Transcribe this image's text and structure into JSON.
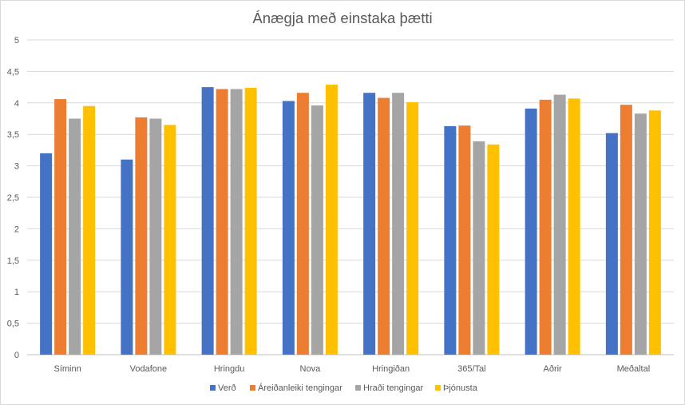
{
  "chart_data": {
    "type": "bar",
    "title": "Ánægja með einstaka þætti",
    "categories": [
      "Síminn",
      "Vodafone",
      "Hringdu",
      "Nova",
      "Hringiðan",
      "365/Tal",
      "Aðrir",
      "Meðaltal"
    ],
    "series": [
      {
        "name": "Verð",
        "color": "#4472c4",
        "values": [
          3.2,
          3.1,
          4.25,
          4.03,
          4.16,
          3.63,
          3.91,
          3.52
        ]
      },
      {
        "name": "Áreiðanleiki tengingar",
        "color": "#ed7d31",
        "values": [
          4.06,
          3.77,
          4.22,
          4.16,
          4.08,
          3.64,
          4.05,
          3.97
        ]
      },
      {
        "name": "Hraði tengingar",
        "color": "#a5a5a5",
        "values": [
          3.75,
          3.75,
          4.22,
          3.96,
          4.16,
          3.39,
          4.13,
          3.83
        ]
      },
      {
        "name": "Þjónusta",
        "color": "#ffc000",
        "values": [
          3.95,
          3.65,
          4.24,
          4.29,
          4.01,
          3.34,
          4.07,
          3.88
        ]
      }
    ],
    "ylim": [
      0,
      5
    ],
    "yticks": [
      "0",
      "0,5",
      "1",
      "1,5",
      "2",
      "2,5",
      "3",
      "3,5",
      "4",
      "4,5",
      "5"
    ],
    "grid": true,
    "legend_position": "bottom"
  }
}
